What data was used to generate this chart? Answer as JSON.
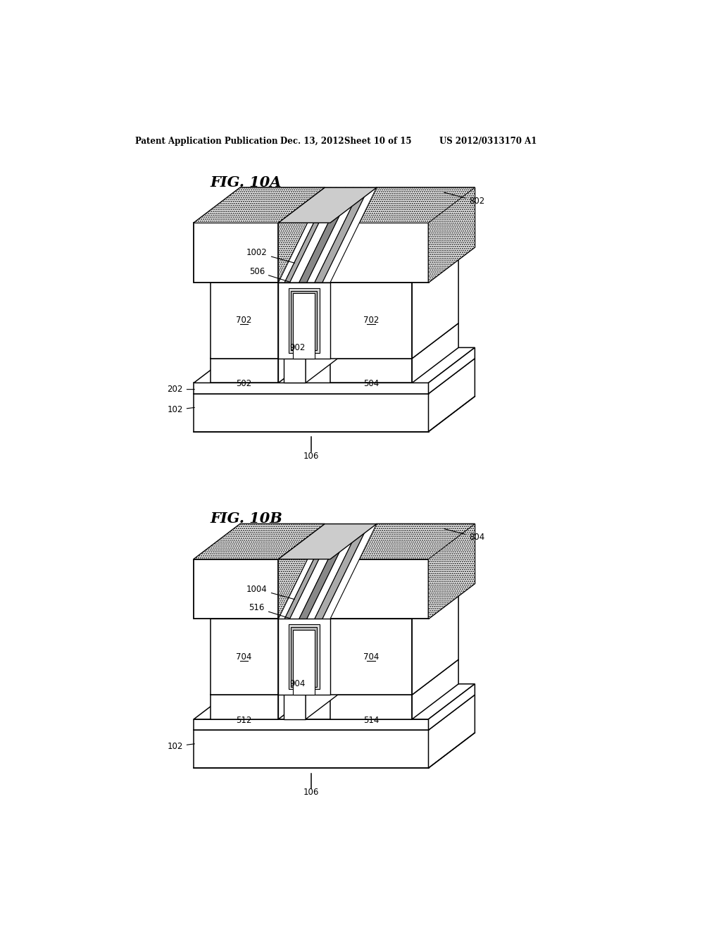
{
  "background": "#ffffff",
  "header_left": "Patent Application Publication",
  "header_mid1": "Dec. 13, 2012",
  "header_mid2": "Sheet 10 of 15",
  "header_right": "US 2012/0313170 A1",
  "fig_a_title": "FIG. 10A",
  "fig_b_title": "FIG. 10B"
}
